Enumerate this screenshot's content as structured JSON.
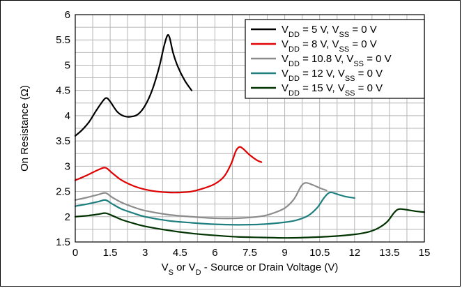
{
  "chart_data": {
    "type": "line",
    "xlabel_parts": [
      {
        "t": "V",
        "sub": false
      },
      {
        "t": "S",
        "sub": true
      },
      {
        "t": " or V",
        "sub": false
      },
      {
        "t": "D",
        "sub": true
      },
      {
        "t": " - Source or Drain Voltage (V)",
        "sub": false
      }
    ],
    "ylabel": "On Resistance (Ω)",
    "xlim": [
      0,
      15
    ],
    "ylim": [
      1.5,
      6
    ],
    "xticks": [
      "0",
      "1.5",
      "3",
      "4.5",
      "6",
      "7.5",
      "9",
      "10.5",
      "12",
      "13.5",
      "15"
    ],
    "xtick_values": [
      0,
      1.5,
      3,
      4.5,
      6,
      7.5,
      9,
      10.5,
      12,
      13.5,
      15
    ],
    "yticks": [
      "1.5",
      "2",
      "2.5",
      "3",
      "3.5",
      "4",
      "4.5",
      "5",
      "5.5",
      "6"
    ],
    "ytick_values": [
      1.5,
      2,
      2.5,
      3,
      3.5,
      4,
      4.5,
      5,
      5.5,
      6
    ],
    "x_grid_step": 0.75,
    "y_grid_step": 0.25,
    "grid": true,
    "legend_position": "top-right",
    "series": [
      {
        "legend": [
          {
            "t": "V",
            "sub": false
          },
          {
            "t": "DD",
            "sub": true
          },
          {
            "t": " = 5 V, V",
            "sub": false
          },
          {
            "t": "SS",
            "sub": true
          },
          {
            "t": " = 0 V",
            "sub": false
          }
        ],
        "color": "#000000",
        "points": [
          [
            0,
            3.6
          ],
          [
            0.3,
            3.72
          ],
          [
            0.6,
            3.88
          ],
          [
            0.9,
            4.1
          ],
          [
            1.2,
            4.3
          ],
          [
            1.35,
            4.35
          ],
          [
            1.5,
            4.28
          ],
          [
            1.8,
            4.08
          ],
          [
            2.1,
            3.99
          ],
          [
            2.4,
            3.98
          ],
          [
            2.7,
            4.03
          ],
          [
            3.0,
            4.2
          ],
          [
            3.3,
            4.5
          ],
          [
            3.6,
            4.95
          ],
          [
            3.8,
            5.35
          ],
          [
            3.95,
            5.58
          ],
          [
            4.05,
            5.55
          ],
          [
            4.2,
            5.25
          ],
          [
            4.4,
            4.98
          ],
          [
            4.7,
            4.7
          ],
          [
            5.0,
            4.5
          ]
        ]
      },
      {
        "legend": [
          {
            "t": "V",
            "sub": false
          },
          {
            "t": "DD",
            "sub": true
          },
          {
            "t": " = 8 V, V",
            "sub": false
          },
          {
            "t": "SS",
            "sub": true
          },
          {
            "t": " = 0 V",
            "sub": false
          }
        ],
        "color": "#e00000",
        "points": [
          [
            0,
            2.72
          ],
          [
            0.5,
            2.82
          ],
          [
            1.0,
            2.93
          ],
          [
            1.3,
            2.97
          ],
          [
            1.6,
            2.86
          ],
          [
            2.0,
            2.72
          ],
          [
            2.5,
            2.61
          ],
          [
            3.0,
            2.54
          ],
          [
            3.5,
            2.5
          ],
          [
            4.0,
            2.48
          ],
          [
            4.5,
            2.48
          ],
          [
            5.0,
            2.5
          ],
          [
            5.5,
            2.56
          ],
          [
            6.0,
            2.65
          ],
          [
            6.4,
            2.8
          ],
          [
            6.7,
            3.05
          ],
          [
            6.9,
            3.3
          ],
          [
            7.05,
            3.38
          ],
          [
            7.2,
            3.35
          ],
          [
            7.5,
            3.22
          ],
          [
            7.8,
            3.12
          ],
          [
            8.0,
            3.08
          ]
        ]
      },
      {
        "legend": [
          {
            "t": "V",
            "sub": false
          },
          {
            "t": "DD",
            "sub": true
          },
          {
            "t": " = 10.8 V, V",
            "sub": false
          },
          {
            "t": "SS",
            "sub": true
          },
          {
            "t": " = 0 V",
            "sub": false
          }
        ],
        "color": "#8c8c8c",
        "points": [
          [
            0,
            2.33
          ],
          [
            0.5,
            2.38
          ],
          [
            1.0,
            2.44
          ],
          [
            1.3,
            2.47
          ],
          [
            1.6,
            2.38
          ],
          [
            2.0,
            2.28
          ],
          [
            2.5,
            2.19
          ],
          [
            3.0,
            2.12
          ],
          [
            4.0,
            2.04
          ],
          [
            5.0,
            2.0
          ],
          [
            6.0,
            1.97
          ],
          [
            7.0,
            1.97
          ],
          [
            8.0,
            2.01
          ],
          [
            8.5,
            2.07
          ],
          [
            9.0,
            2.17
          ],
          [
            9.4,
            2.35
          ],
          [
            9.7,
            2.6
          ],
          [
            9.9,
            2.67
          ],
          [
            10.2,
            2.63
          ],
          [
            10.5,
            2.57
          ],
          [
            10.8,
            2.52
          ]
        ]
      },
      {
        "legend": [
          {
            "t": "V",
            "sub": false
          },
          {
            "t": "DD",
            "sub": true
          },
          {
            "t": " = 12 V, V",
            "sub": false
          },
          {
            "t": "SS",
            "sub": true
          },
          {
            "t": " = 0 V",
            "sub": false
          }
        ],
        "color": "#1f7f7f",
        "points": [
          [
            0,
            2.21
          ],
          [
            0.5,
            2.25
          ],
          [
            1.0,
            2.3
          ],
          [
            1.3,
            2.33
          ],
          [
            1.6,
            2.25
          ],
          [
            2.0,
            2.15
          ],
          [
            2.5,
            2.07
          ],
          [
            3.0,
            2.0
          ],
          [
            4.0,
            1.92
          ],
          [
            5.0,
            1.88
          ],
          [
            6.0,
            1.85
          ],
          [
            7.0,
            1.84
          ],
          [
            8.0,
            1.85
          ],
          [
            9.0,
            1.89
          ],
          [
            9.5,
            1.93
          ],
          [
            10.0,
            2.02
          ],
          [
            10.4,
            2.18
          ],
          [
            10.7,
            2.38
          ],
          [
            10.95,
            2.48
          ],
          [
            11.3,
            2.44
          ],
          [
            11.6,
            2.4
          ],
          [
            12.0,
            2.37
          ]
        ]
      },
      {
        "legend": [
          {
            "t": "V",
            "sub": false
          },
          {
            "t": "DD",
            "sub": true
          },
          {
            "t": " = 15 V, V",
            "sub": false
          },
          {
            "t": "SS",
            "sub": true
          },
          {
            "t": " = 0 V",
            "sub": false
          }
        ],
        "color": "#003300",
        "points": [
          [
            0,
            2.0
          ],
          [
            0.5,
            2.02
          ],
          [
            1.0,
            2.05
          ],
          [
            1.3,
            2.07
          ],
          [
            1.6,
            2.02
          ],
          [
            2.0,
            1.94
          ],
          [
            2.5,
            1.87
          ],
          [
            3.0,
            1.81
          ],
          [
            4.0,
            1.73
          ],
          [
            5.0,
            1.67
          ],
          [
            6.0,
            1.63
          ],
          [
            7.0,
            1.6
          ],
          [
            8.0,
            1.59
          ],
          [
            9.0,
            1.58
          ],
          [
            10.0,
            1.59
          ],
          [
            11.0,
            1.61
          ],
          [
            12.0,
            1.65
          ],
          [
            12.6,
            1.7
          ],
          [
            13.0,
            1.77
          ],
          [
            13.4,
            1.9
          ],
          [
            13.7,
            2.08
          ],
          [
            13.9,
            2.15
          ],
          [
            14.2,
            2.14
          ],
          [
            14.6,
            2.11
          ],
          [
            15.0,
            2.09
          ]
        ]
      }
    ]
  }
}
